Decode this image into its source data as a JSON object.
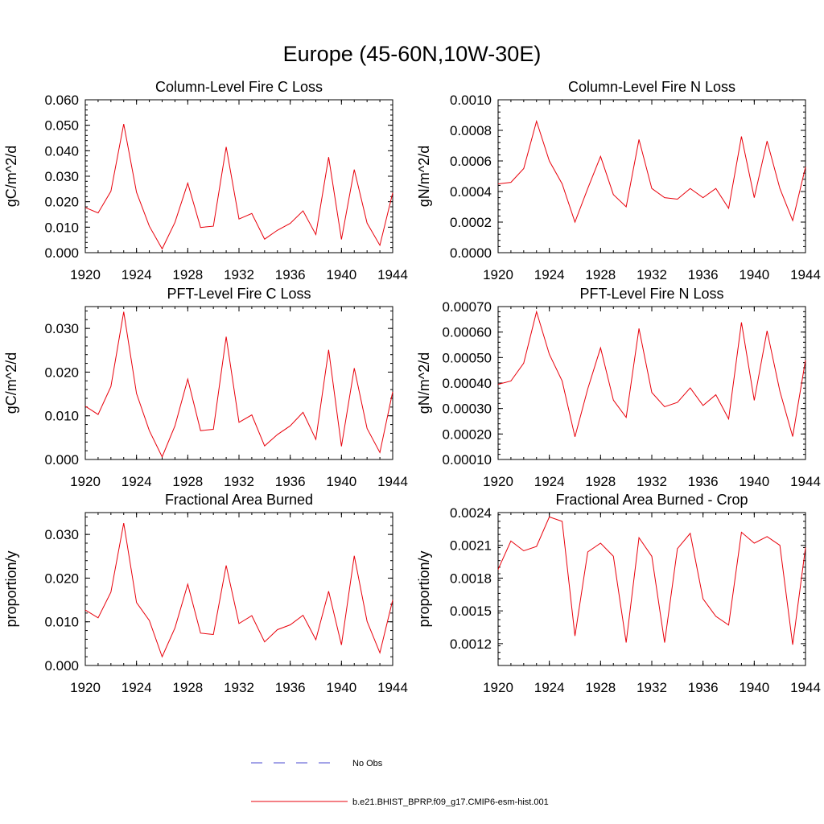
{
  "title": "Europe (45-60N,10W-30E)",
  "legend": {
    "obs_label": "No Obs",
    "obs_color": "#4a4ad0",
    "model_label": "b.e21.BHIST_BPRP.f09_g17.CMIP6-esm-hist.001",
    "model_color": "#e8000b"
  },
  "chart_data": [
    {
      "type": "line",
      "title": "Column-Level Fire C Loss",
      "ylabel": "gC/m^2/d",
      "xlim": [
        1920,
        1944
      ],
      "ylim": [
        0,
        0.06
      ],
      "yticks": [
        0,
        0.01,
        0.02,
        0.03,
        0.04,
        0.05,
        0.06
      ],
      "ytick_labels": [
        "0.000",
        "0.010",
        "0.020",
        "0.030",
        "0.040",
        "0.050",
        "0.060"
      ],
      "xticks": [
        1920,
        1924,
        1928,
        1932,
        1936,
        1940,
        1944
      ],
      "xtick_labels": [
        "1920",
        "1924",
        "1928",
        "1932",
        "1936",
        "1940",
        "1944"
      ],
      "x": [
        1920,
        1921,
        1922,
        1923,
        1924,
        1925,
        1926,
        1927,
        1928,
        1929,
        1930,
        1931,
        1932,
        1933,
        1934,
        1935,
        1936,
        1937,
        1938,
        1939,
        1940,
        1941,
        1942,
        1943,
        1944
      ],
      "values": [
        0.0177,
        0.0156,
        0.0241,
        0.0505,
        0.0237,
        0.0104,
        0.0015,
        0.0119,
        0.0273,
        0.0099,
        0.0104,
        0.0415,
        0.0132,
        0.0154,
        0.0053,
        0.0088,
        0.0115,
        0.0164,
        0.0071,
        0.0375,
        0.0052,
        0.0326,
        0.0116,
        0.0029,
        0.0235
      ]
    },
    {
      "type": "line",
      "title": "Column-Level Fire N Loss",
      "ylabel": "gN/m^2/d",
      "xlim": [
        1920,
        1944
      ],
      "ylim": [
        0,
        0.001
      ],
      "yticks": [
        0,
        0.0002,
        0.0004,
        0.0006,
        0.0008,
        0.001
      ],
      "ytick_labels": [
        "0.0000",
        "0.0002",
        "0.0004",
        "0.0006",
        "0.0008",
        "0.0010"
      ],
      "xticks": [
        1920,
        1924,
        1928,
        1932,
        1936,
        1940,
        1944
      ],
      "xtick_labels": [
        "1920",
        "1924",
        "1928",
        "1932",
        "1936",
        "1940",
        "1944"
      ],
      "x": [
        1920,
        1921,
        1922,
        1923,
        1924,
        1925,
        1926,
        1927,
        1928,
        1929,
        1930,
        1931,
        1932,
        1933,
        1934,
        1935,
        1936,
        1937,
        1938,
        1939,
        1940,
        1941,
        1942,
        1943,
        1944
      ],
      "values": [
        0.00045,
        0.00046,
        0.00055,
        0.00086,
        0.0006,
        0.00045,
        0.0002,
        0.00042,
        0.00063,
        0.00038,
        0.0003,
        0.00074,
        0.00042,
        0.00036,
        0.00035,
        0.00042,
        0.00036,
        0.00042,
        0.00029,
        0.00076,
        0.00036,
        0.00073,
        0.00042,
        0.00021,
        0.00056
      ]
    },
    {
      "type": "line",
      "title": "PFT-Level Fire C Loss",
      "ylabel": "gC/m^2/d",
      "xlim": [
        1920,
        1944
      ],
      "ylim": [
        0,
        0.035
      ],
      "yticks": [
        0,
        0.01,
        0.02,
        0.03
      ],
      "ytick_labels": [
        "0.000",
        "0.010",
        "0.020",
        "0.030"
      ],
      "xticks": [
        1920,
        1924,
        1928,
        1932,
        1936,
        1940,
        1944
      ],
      "xtick_labels": [
        "1920",
        "1924",
        "1928",
        "1932",
        "1936",
        "1940",
        "1944"
      ],
      "x": [
        1920,
        1921,
        1922,
        1923,
        1924,
        1925,
        1926,
        1927,
        1928,
        1929,
        1930,
        1931,
        1932,
        1933,
        1934,
        1935,
        1936,
        1937,
        1938,
        1939,
        1940,
        1941,
        1942,
        1943,
        1944
      ],
      "values": [
        0.0122,
        0.0103,
        0.0167,
        0.0338,
        0.0151,
        0.0066,
        0.0006,
        0.0077,
        0.0184,
        0.0066,
        0.0069,
        0.0281,
        0.0085,
        0.0102,
        0.0031,
        0.0057,
        0.0077,
        0.0108,
        0.0046,
        0.0251,
        0.003,
        0.0209,
        0.0071,
        0.0016,
        0.0155
      ]
    },
    {
      "type": "line",
      "title": "PFT-Level Fire N Loss",
      "ylabel": "gN/m^2/d",
      "xlim": [
        1920,
        1944
      ],
      "ylim": [
        0.0001,
        0.0007
      ],
      "yticks": [
        0.0001,
        0.0002,
        0.0003,
        0.0004,
        0.0005,
        0.0006,
        0.0007
      ],
      "ytick_labels": [
        "0.00010",
        "0.00020",
        "0.00030",
        "0.00040",
        "0.00050",
        "0.00060",
        "0.00070"
      ],
      "xticks": [
        1920,
        1924,
        1928,
        1932,
        1936,
        1940,
        1944
      ],
      "xtick_labels": [
        "1920",
        "1924",
        "1928",
        "1932",
        "1936",
        "1940",
        "1944"
      ],
      "x": [
        1920,
        1921,
        1922,
        1923,
        1924,
        1925,
        1926,
        1927,
        1928,
        1929,
        1930,
        1931,
        1932,
        1933,
        1934,
        1935,
        1936,
        1937,
        1938,
        1939,
        1940,
        1941,
        1942,
        1943,
        1944
      ],
      "values": [
        0.000395,
        0.000408,
        0.000478,
        0.00068,
        0.000513,
        0.000408,
        0.000189,
        0.000377,
        0.000538,
        0.000333,
        0.000265,
        0.000614,
        0.000363,
        0.000307,
        0.000324,
        0.000381,
        0.000312,
        0.000354,
        0.000259,
        0.000638,
        0.000332,
        0.000605,
        0.000368,
        0.00019,
        0.00049
      ]
    },
    {
      "type": "line",
      "title": "Fractional Area Burned",
      "ylabel": "proportion/y",
      "xlim": [
        1920,
        1944
      ],
      "ylim": [
        0,
        0.035
      ],
      "yticks": [
        0,
        0.01,
        0.02,
        0.03
      ],
      "ytick_labels": [
        "0.000",
        "0.010",
        "0.020",
        "0.030"
      ],
      "xticks": [
        1920,
        1924,
        1928,
        1932,
        1936,
        1940,
        1944
      ],
      "xtick_labels": [
        "1920",
        "1924",
        "1928",
        "1932",
        "1936",
        "1940",
        "1944"
      ],
      "x": [
        1920,
        1921,
        1922,
        1923,
        1924,
        1925,
        1926,
        1927,
        1928,
        1929,
        1930,
        1931,
        1932,
        1933,
        1934,
        1935,
        1936,
        1937,
        1938,
        1939,
        1940,
        1941,
        1942,
        1943,
        1944
      ],
      "values": [
        0.0127,
        0.0109,
        0.0168,
        0.0326,
        0.0144,
        0.0103,
        0.002,
        0.0086,
        0.0186,
        0.0074,
        0.0071,
        0.0229,
        0.0096,
        0.0114,
        0.0054,
        0.0082,
        0.0093,
        0.0115,
        0.0059,
        0.017,
        0.0047,
        0.0251,
        0.0101,
        0.0029,
        0.015
      ]
    },
    {
      "type": "line",
      "title": "Fractional Area Burned - Crop",
      "ylabel": "proportion/y",
      "xlim": [
        1920,
        1944
      ],
      "ylim": [
        0.001,
        0.0024
      ],
      "yticks": [
        0.0012,
        0.0015,
        0.0018,
        0.0021,
        0.0024
      ],
      "ytick_labels": [
        "0.0012",
        "0.0015",
        "0.0018",
        "0.0021",
        "0.0024"
      ],
      "xticks": [
        1920,
        1924,
        1928,
        1932,
        1936,
        1940,
        1944
      ],
      "xtick_labels": [
        "1920",
        "1924",
        "1928",
        "1932",
        "1936",
        "1940",
        "1944"
      ],
      "x": [
        1920,
        1921,
        1922,
        1923,
        1924,
        1925,
        1926,
        1927,
        1928,
        1929,
        1930,
        1931,
        1932,
        1933,
        1934,
        1935,
        1936,
        1937,
        1938,
        1939,
        1940,
        1941,
        1942,
        1943,
        1944
      ],
      "values": [
        0.00188,
        0.00214,
        0.00205,
        0.00209,
        0.00236,
        0.00232,
        0.00127,
        0.00204,
        0.00212,
        0.002,
        0.00121,
        0.00217,
        0.002,
        0.00121,
        0.00207,
        0.00221,
        0.00161,
        0.00145,
        0.00137,
        0.00222,
        0.00212,
        0.00218,
        0.0021,
        0.00119,
        0.00208
      ]
    }
  ]
}
